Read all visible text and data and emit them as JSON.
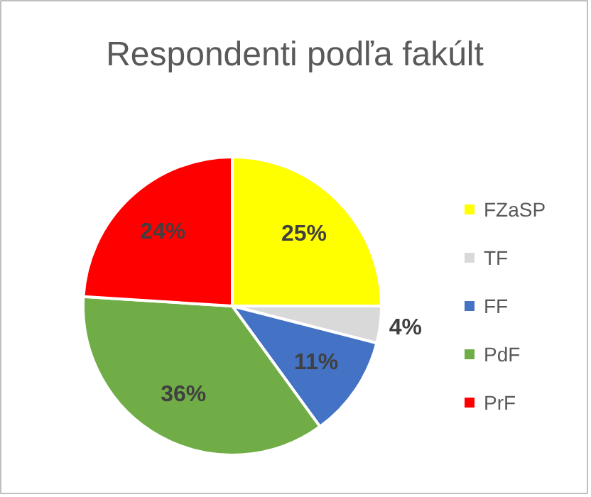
{
  "chart_data": {
    "type": "pie",
    "title": "Respondenti podľa fakúlt",
    "categories": [
      "FZaSP",
      "TF",
      "FF",
      "PdF",
      "PrF"
    ],
    "values": [
      25,
      4,
      11,
      36,
      24
    ],
    "colors": [
      "#ffff00",
      "#d9d9d9",
      "#4472c4",
      "#70ad47",
      "#ff0000"
    ],
    "value_labels": [
      "25%",
      "4%",
      "11%",
      "36%",
      "24%"
    ],
    "legend": "right"
  }
}
